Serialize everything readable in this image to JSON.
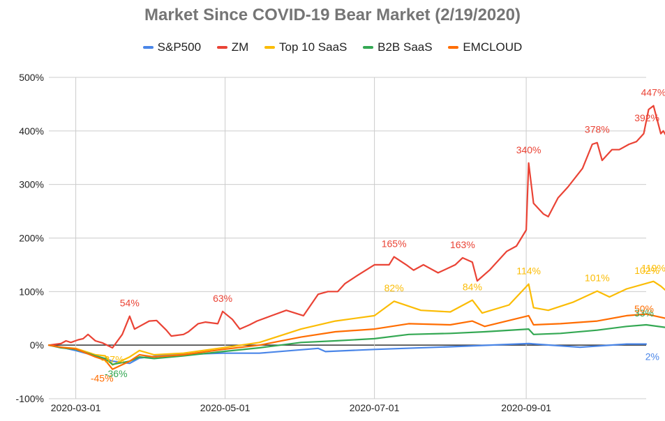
{
  "chart_data": {
    "type": "line",
    "title": "Market Since COVID-19 Bear Market (2/19/2020)",
    "xlabel": "",
    "ylabel": "",
    "x_range": [
      "2020-02-19",
      "2020-10-20"
    ],
    "x_ticks": [
      "2020-03-01",
      "2020-05-01",
      "2020-07-01",
      "2020-09-01"
    ],
    "y_ticks": [
      "-100%",
      "0%",
      "100%",
      "200%",
      "300%",
      "400%",
      "500%"
    ],
    "y_tick_values": [
      -100,
      0,
      100,
      200,
      300,
      400,
      500
    ],
    "ylim": [
      -100,
      500
    ],
    "grid": true,
    "legend_position": "top",
    "series": [
      {
        "name": "S&P500",
        "color": "#4a86e8",
        "points": [
          [
            "2020-02-19",
            0
          ],
          [
            "2020-02-24",
            -4
          ],
          [
            "2020-03-01",
            -10
          ],
          [
            "2020-03-09",
            -20
          ],
          [
            "2020-03-13",
            -25
          ],
          [
            "2020-03-16",
            -30
          ],
          [
            "2020-03-23",
            -34
          ],
          [
            "2020-03-27",
            -24
          ],
          [
            "2020-04-08",
            -18
          ],
          [
            "2020-04-30",
            -15
          ],
          [
            "2020-05-15",
            -15
          ],
          [
            "2020-06-08",
            -6
          ],
          [
            "2020-06-11",
            -12
          ],
          [
            "2020-07-01",
            -8
          ],
          [
            "2020-08-01",
            -3
          ],
          [
            "2020-09-02",
            3
          ],
          [
            "2020-09-23",
            -4
          ],
          [
            "2020-10-12",
            2
          ],
          [
            "2020-10-20",
            2
          ]
        ],
        "labels": [
          {
            "date": "2020-10-20",
            "text": "2%"
          }
        ]
      },
      {
        "name": "ZM",
        "color": "#ea4335",
        "points": [
          [
            "2020-02-19",
            0
          ],
          [
            "2020-02-24",
            3
          ],
          [
            "2020-02-26",
            8
          ],
          [
            "2020-02-28",
            5
          ],
          [
            "2020-03-02",
            10
          ],
          [
            "2020-03-04",
            12
          ],
          [
            "2020-03-06",
            20
          ],
          [
            "2020-03-09",
            8
          ],
          [
            "2020-03-12",
            4
          ],
          [
            "2020-03-16",
            -5
          ],
          [
            "2020-03-20",
            20
          ],
          [
            "2020-03-23",
            54
          ],
          [
            "2020-03-25",
            30
          ],
          [
            "2020-03-27",
            35
          ],
          [
            "2020-03-31",
            45
          ],
          [
            "2020-04-03",
            46
          ],
          [
            "2020-04-07",
            28
          ],
          [
            "2020-04-09",
            17
          ],
          [
            "2020-04-14",
            20
          ],
          [
            "2020-04-16",
            25
          ],
          [
            "2020-04-20",
            40
          ],
          [
            "2020-04-23",
            43
          ],
          [
            "2020-04-28",
            40
          ],
          [
            "2020-04-30",
            63
          ],
          [
            "2020-05-04",
            48
          ],
          [
            "2020-05-07",
            30
          ],
          [
            "2020-05-11",
            38
          ],
          [
            "2020-05-14",
            45
          ],
          [
            "2020-05-20",
            55
          ],
          [
            "2020-05-26",
            65
          ],
          [
            "2020-06-02",
            55
          ],
          [
            "2020-06-08",
            95
          ],
          [
            "2020-06-12",
            100
          ],
          [
            "2020-06-16",
            100
          ],
          [
            "2020-06-19",
            115
          ],
          [
            "2020-06-24",
            130
          ],
          [
            "2020-07-01",
            150
          ],
          [
            "2020-07-07",
            150
          ],
          [
            "2020-07-09",
            165
          ],
          [
            "2020-07-14",
            150
          ],
          [
            "2020-07-17",
            140
          ],
          [
            "2020-07-21",
            150
          ],
          [
            "2020-07-27",
            135
          ],
          [
            "2020-08-03",
            150
          ],
          [
            "2020-08-06",
            163
          ],
          [
            "2020-08-10",
            155
          ],
          [
            "2020-08-12",
            120
          ],
          [
            "2020-08-17",
            140
          ],
          [
            "2020-08-24",
            175
          ],
          [
            "2020-08-28",
            185
          ],
          [
            "2020-09-01",
            215
          ],
          [
            "2020-09-02",
            340
          ],
          [
            "2020-09-04",
            265
          ],
          [
            "2020-09-08",
            245
          ],
          [
            "2020-09-10",
            240
          ],
          [
            "2020-09-14",
            275
          ],
          [
            "2020-09-18",
            295
          ],
          [
            "2020-09-24",
            330
          ],
          [
            "2020-09-28",
            375
          ],
          [
            "2020-09-30",
            378
          ],
          [
            "2020-10-02",
            345
          ],
          [
            "2020-10-06",
            365
          ],
          [
            "2020-10-09",
            365
          ],
          [
            "2020-10-13",
            375
          ],
          [
            "2020-10-16",
            380
          ],
          [
            "2020-10-19",
            395
          ],
          [
            "2020-10-21",
            440
          ],
          [
            "2020-10-23",
            447
          ],
          [
            "2020-10-26",
            395
          ],
          [
            "2020-10-27",
            400
          ],
          [
            "2020-10-28",
            392
          ]
        ],
        "labels": [
          {
            "date": "2020-03-23",
            "text": "54%"
          },
          {
            "date": "2020-04-30",
            "text": "63%"
          },
          {
            "date": "2020-07-09",
            "text": "165%"
          },
          {
            "date": "2020-08-06",
            "text": "163%"
          },
          {
            "date": "2020-09-02",
            "text": "340%"
          },
          {
            "date": "2020-09-30",
            "text": "378%"
          },
          {
            "date": "2020-10-23",
            "text": "447%"
          },
          {
            "date": "2020-10-28",
            "text": "392%"
          }
        ]
      },
      {
        "name": "Top 10 SaaS",
        "color": "#fbbc04",
        "points": [
          [
            "2020-02-19",
            0
          ],
          [
            "2020-02-24",
            -4
          ],
          [
            "2020-03-01",
            -6
          ],
          [
            "2020-03-09",
            -18
          ],
          [
            "2020-03-13",
            -20
          ],
          [
            "2020-03-16",
            -37
          ],
          [
            "2020-03-23",
            -22
          ],
          [
            "2020-03-27",
            -10
          ],
          [
            "2020-04-02",
            -18
          ],
          [
            "2020-04-14",
            -15
          ],
          [
            "2020-04-30",
            -5
          ],
          [
            "2020-05-15",
            5
          ],
          [
            "2020-06-01",
            30
          ],
          [
            "2020-06-15",
            45
          ],
          [
            "2020-07-01",
            55
          ],
          [
            "2020-07-09",
            82
          ],
          [
            "2020-07-20",
            65
          ],
          [
            "2020-08-01",
            62
          ],
          [
            "2020-08-10",
            84
          ],
          [
            "2020-08-14",
            60
          ],
          [
            "2020-08-25",
            75
          ],
          [
            "2020-09-02",
            114
          ],
          [
            "2020-09-04",
            70
          ],
          [
            "2020-09-10",
            65
          ],
          [
            "2020-09-20",
            80
          ],
          [
            "2020-09-30",
            101
          ],
          [
            "2020-10-05",
            90
          ],
          [
            "2020-10-12",
            105
          ],
          [
            "2020-10-23",
            119
          ],
          [
            "2020-10-26",
            110
          ],
          [
            "2020-10-28",
            102
          ]
        ],
        "labels": [
          {
            "date": "2020-03-16",
            "text": "-37%"
          },
          {
            "date": "2020-07-09",
            "text": "82%"
          },
          {
            "date": "2020-08-10",
            "text": "84%"
          },
          {
            "date": "2020-09-02",
            "text": "114%"
          },
          {
            "date": "2020-09-30",
            "text": "101%"
          },
          {
            "date": "2020-10-23",
            "text": "119%"
          },
          {
            "date": "2020-10-28",
            "text": "102%"
          }
        ]
      },
      {
        "name": "B2B SaaS",
        "color": "#34a853",
        "points": [
          [
            "2020-02-19",
            0
          ],
          [
            "2020-02-24",
            -5
          ],
          [
            "2020-03-01",
            -8
          ],
          [
            "2020-03-09",
            -20
          ],
          [
            "2020-03-13",
            -25
          ],
          [
            "2020-03-16",
            -36
          ],
          [
            "2020-03-23",
            -30
          ],
          [
            "2020-03-27",
            -22
          ],
          [
            "2020-04-02",
            -25
          ],
          [
            "2020-04-14",
            -20
          ],
          [
            "2020-04-30",
            -12
          ],
          [
            "2020-05-15",
            -5
          ],
          [
            "2020-06-01",
            5
          ],
          [
            "2020-06-15",
            8
          ],
          [
            "2020-07-01",
            12
          ],
          [
            "2020-07-15",
            20
          ],
          [
            "2020-08-01",
            22
          ],
          [
            "2020-08-15",
            25
          ],
          [
            "2020-09-02",
            30
          ],
          [
            "2020-09-04",
            20
          ],
          [
            "2020-09-15",
            22
          ],
          [
            "2020-09-30",
            28
          ],
          [
            "2020-10-12",
            35
          ],
          [
            "2020-10-20",
            38
          ],
          [
            "2020-10-28",
            33
          ]
        ],
        "labels": [
          {
            "date": "2020-03-16",
            "text": "-36%"
          },
          {
            "date": "2020-10-28",
            "text": "33%"
          }
        ]
      },
      {
        "name": "EMCLOUD",
        "color": "#ff6d01",
        "points": [
          [
            "2020-02-19",
            0
          ],
          [
            "2020-02-24",
            -4
          ],
          [
            "2020-03-01",
            -7
          ],
          [
            "2020-03-09",
            -22
          ],
          [
            "2020-03-13",
            -28
          ],
          [
            "2020-03-16",
            -45
          ],
          [
            "2020-03-23",
            -30
          ],
          [
            "2020-03-27",
            -18
          ],
          [
            "2020-04-02",
            -22
          ],
          [
            "2020-04-14",
            -18
          ],
          [
            "2020-04-30",
            -8
          ],
          [
            "2020-05-15",
            0
          ],
          [
            "2020-06-01",
            15
          ],
          [
            "2020-06-15",
            25
          ],
          [
            "2020-07-01",
            30
          ],
          [
            "2020-07-15",
            40
          ],
          [
            "2020-08-01",
            38
          ],
          [
            "2020-08-10",
            45
          ],
          [
            "2020-08-15",
            35
          ],
          [
            "2020-09-02",
            55
          ],
          [
            "2020-09-04",
            38
          ],
          [
            "2020-09-15",
            40
          ],
          [
            "2020-09-30",
            45
          ],
          [
            "2020-10-12",
            55
          ],
          [
            "2020-10-20",
            58
          ],
          [
            "2020-10-28",
            50
          ]
        ],
        "labels": [
          {
            "date": "2020-03-16",
            "text": "-45%"
          },
          {
            "date": "2020-10-28",
            "text": "50%"
          }
        ]
      }
    ]
  }
}
